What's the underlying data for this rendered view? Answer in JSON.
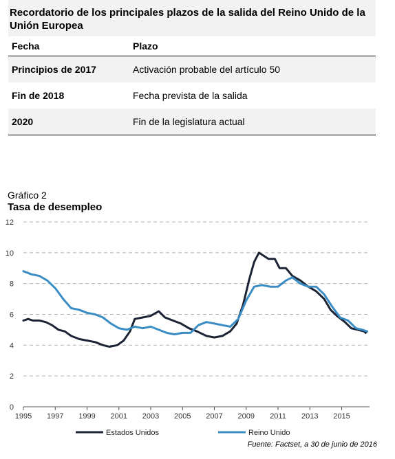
{
  "table": {
    "title": "Recordatorio de los principales plazos de la salida del Reino Unido de la Unión Europea",
    "col_headers": [
      "Fecha",
      "Plazo"
    ],
    "rows": [
      {
        "date": "Principios de 2017",
        "item": "Activación probable del artículo 50"
      },
      {
        "date": "Fin de 2018",
        "item": "Fecha prevista de la salida"
      },
      {
        "date": "2020",
        "item": "Fin de la legislatura actual"
      }
    ]
  },
  "chart": {
    "caption": "Gráfico 2",
    "title": "Tasa de desempleo",
    "source": "Fuente: Factset, a 30 de junio de 2016"
  },
  "colors": {
    "us": "#1b2435",
    "uk": "#3a8dc4",
    "grid": "#b0b0b0",
    "axis": "#555555"
  },
  "chart_data": {
    "type": "line",
    "title": "Tasa de desempleo",
    "xlabel": "",
    "ylabel": "",
    "xlim": [
      1995,
      2016.75
    ],
    "ylim": [
      0,
      12
    ],
    "x_ticks": [
      "1995",
      "1997",
      "1999",
      "2001",
      "2003",
      "2005",
      "2007",
      "2009",
      "2011",
      "2013",
      "2015"
    ],
    "y_ticks": [
      "0",
      "2",
      "4",
      "6",
      "8",
      "10",
      "12"
    ],
    "grid": "horizontal dashed",
    "legend_position": "bottom",
    "series": [
      {
        "name": "Estados Unidos",
        "color": "#1b2435",
        "points": [
          [
            1995.0,
            5.6
          ],
          [
            1995.3,
            5.7
          ],
          [
            1995.6,
            5.6
          ],
          [
            1996.0,
            5.6
          ],
          [
            1996.4,
            5.5
          ],
          [
            1996.8,
            5.3
          ],
          [
            1997.2,
            5.0
          ],
          [
            1997.6,
            4.9
          ],
          [
            1998.0,
            4.6
          ],
          [
            1998.5,
            4.4
          ],
          [
            1999.0,
            4.3
          ],
          [
            1999.5,
            4.2
          ],
          [
            2000.0,
            4.0
          ],
          [
            2000.4,
            3.9
          ],
          [
            2000.9,
            4.0
          ],
          [
            2001.3,
            4.3
          ],
          [
            2001.7,
            4.9
          ],
          [
            2002.0,
            5.7
          ],
          [
            2002.5,
            5.8
          ],
          [
            2003.0,
            5.9
          ],
          [
            2003.5,
            6.2
          ],
          [
            2003.9,
            5.8
          ],
          [
            2004.4,
            5.6
          ],
          [
            2004.9,
            5.4
          ],
          [
            2005.4,
            5.1
          ],
          [
            2005.9,
            4.9
          ],
          [
            2006.5,
            4.6
          ],
          [
            2007.0,
            4.5
          ],
          [
            2007.5,
            4.6
          ],
          [
            2008.0,
            4.9
          ],
          [
            2008.4,
            5.4
          ],
          [
            2008.8,
            6.6
          ],
          [
            2009.2,
            8.3
          ],
          [
            2009.5,
            9.4
          ],
          [
            2009.8,
            10.0
          ],
          [
            2010.1,
            9.8
          ],
          [
            2010.4,
            9.6
          ],
          [
            2010.8,
            9.6
          ],
          [
            2011.1,
            9.0
          ],
          [
            2011.5,
            9.0
          ],
          [
            2011.9,
            8.5
          ],
          [
            2012.4,
            8.2
          ],
          [
            2012.9,
            7.8
          ],
          [
            2013.4,
            7.5
          ],
          [
            2013.9,
            7.0
          ],
          [
            2014.3,
            6.3
          ],
          [
            2014.7,
            5.9
          ],
          [
            2015.2,
            5.5
          ],
          [
            2015.6,
            5.1
          ],
          [
            2016.0,
            5.0
          ],
          [
            2016.4,
            4.9
          ],
          [
            2016.5,
            4.8
          ],
          [
            2016.6,
            4.9
          ]
        ]
      },
      {
        "name": "Reino Unido",
        "color": "#3a8dc4",
        "points": [
          [
            1995.0,
            8.8
          ],
          [
            1995.5,
            8.6
          ],
          [
            1996.0,
            8.5
          ],
          [
            1996.5,
            8.2
          ],
          [
            1997.0,
            7.7
          ],
          [
            1997.5,
            7.0
          ],
          [
            1998.0,
            6.4
          ],
          [
            1998.5,
            6.3
          ],
          [
            1999.0,
            6.1
          ],
          [
            1999.5,
            6.0
          ],
          [
            2000.0,
            5.8
          ],
          [
            2000.5,
            5.4
          ],
          [
            2001.0,
            5.1
          ],
          [
            2001.5,
            5.0
          ],
          [
            2002.0,
            5.2
          ],
          [
            2002.5,
            5.1
          ],
          [
            2003.0,
            5.2
          ],
          [
            2003.5,
            5.0
          ],
          [
            2004.0,
            4.8
          ],
          [
            2004.5,
            4.7
          ],
          [
            2005.0,
            4.8
          ],
          [
            2005.5,
            4.8
          ],
          [
            2006.0,
            5.3
          ],
          [
            2006.5,
            5.5
          ],
          [
            2007.0,
            5.4
          ],
          [
            2007.5,
            5.3
          ],
          [
            2008.0,
            5.2
          ],
          [
            2008.5,
            5.7
          ],
          [
            2009.0,
            6.9
          ],
          [
            2009.5,
            7.8
          ],
          [
            2010.0,
            7.9
          ],
          [
            2010.5,
            7.8
          ],
          [
            2011.0,
            7.8
          ],
          [
            2011.5,
            8.2
          ],
          [
            2011.9,
            8.4
          ],
          [
            2012.4,
            8.0
          ],
          [
            2012.9,
            7.8
          ],
          [
            2013.4,
            7.8
          ],
          [
            2013.9,
            7.3
          ],
          [
            2014.4,
            6.5
          ],
          [
            2014.9,
            5.8
          ],
          [
            2015.4,
            5.6
          ],
          [
            2015.9,
            5.1
          ],
          [
            2016.3,
            5.0
          ],
          [
            2016.6,
            4.9
          ]
        ]
      }
    ]
  }
}
